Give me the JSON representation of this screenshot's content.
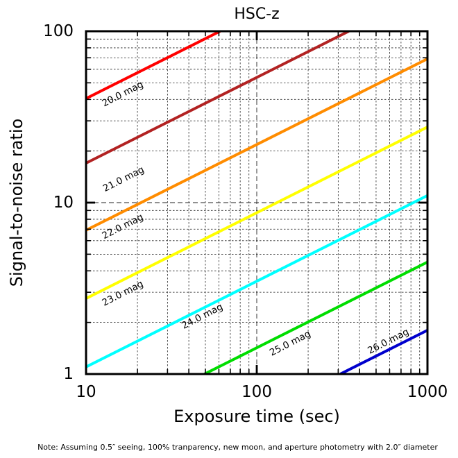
{
  "figure": {
    "note": "Note: Assuming 0.5″ seeing, 100% tranparency, new moon, and aperture photometry with 2.0″ diameter",
    "background_color": "#ffffff",
    "axis_color": "#000000",
    "grid_color": "#222222"
  },
  "chart_data": {
    "type": "line",
    "title": "HSC-z",
    "xlabel": "Exposure time (sec)",
    "ylabel": "Signal-to-noise ratio",
    "xscale": "log",
    "yscale": "log",
    "xlim": [
      10,
      1000
    ],
    "ylim": [
      1,
      100
    ],
    "x_major_ticks": [
      10,
      100,
      1000
    ],
    "y_major_ticks": [
      1,
      10,
      100
    ],
    "grid": {
      "which": "both",
      "linestyle": "dashed",
      "color": "#222222"
    },
    "legend": "none",
    "model": "snr(t) = snr_at_10s * sqrt(t / 10)",
    "series": [
      {
        "name": "20.0 mag",
        "color": "#ff0000",
        "snr_at_10s": 40.5,
        "points": [
          [
            10,
            40.5
          ],
          [
            61,
            100
          ]
        ],
        "label_anchor": {
          "t": 16.4,
          "snr": 43.0
        }
      },
      {
        "name": "21.0 mag",
        "color": "#b22222",
        "snr_at_10s": 17.0,
        "points": [
          [
            10,
            17.0
          ],
          [
            346,
            100
          ]
        ],
        "label_anchor": {
          "t": 16.6,
          "snr": 13.7
        }
      },
      {
        "name": "22.0 mag",
        "color": "#ff8c00",
        "snr_at_10s": 6.9,
        "points": [
          [
            10,
            6.9
          ],
          [
            1000,
            69
          ]
        ],
        "label_anchor": {
          "t": 16.4,
          "snr": 7.25
        }
      },
      {
        "name": "23.0 mag",
        "color": "#ffff00",
        "snr_at_10s": 2.76,
        "points": [
          [
            10,
            2.76
          ],
          [
            1000,
            27.6
          ]
        ],
        "label_anchor": {
          "t": 16.4,
          "snr": 2.95
        }
      },
      {
        "name": "24.0 mag",
        "color": "#00ffff",
        "snr_at_10s": 1.1,
        "points": [
          [
            10,
            1.1
          ],
          [
            1000,
            11.0
          ]
        ],
        "label_anchor": {
          "t": 48,
          "snr": 2.17
        }
      },
      {
        "name": "25.0 mag",
        "color": "#00dd00",
        "snr_at_10s": 0.45,
        "points": [
          [
            49.4,
            1
          ],
          [
            1000,
            4.5
          ]
        ],
        "label_anchor": {
          "t": 157,
          "snr": 1.51
        }
      },
      {
        "name": "26.0 mag",
        "color": "#0000cd",
        "snr_at_10s": 0.18,
        "points": [
          [
            308.6,
            1
          ],
          [
            1000,
            1.8
          ]
        ],
        "label_anchor": {
          "t": 590,
          "snr": 1.55
        }
      }
    ]
  }
}
